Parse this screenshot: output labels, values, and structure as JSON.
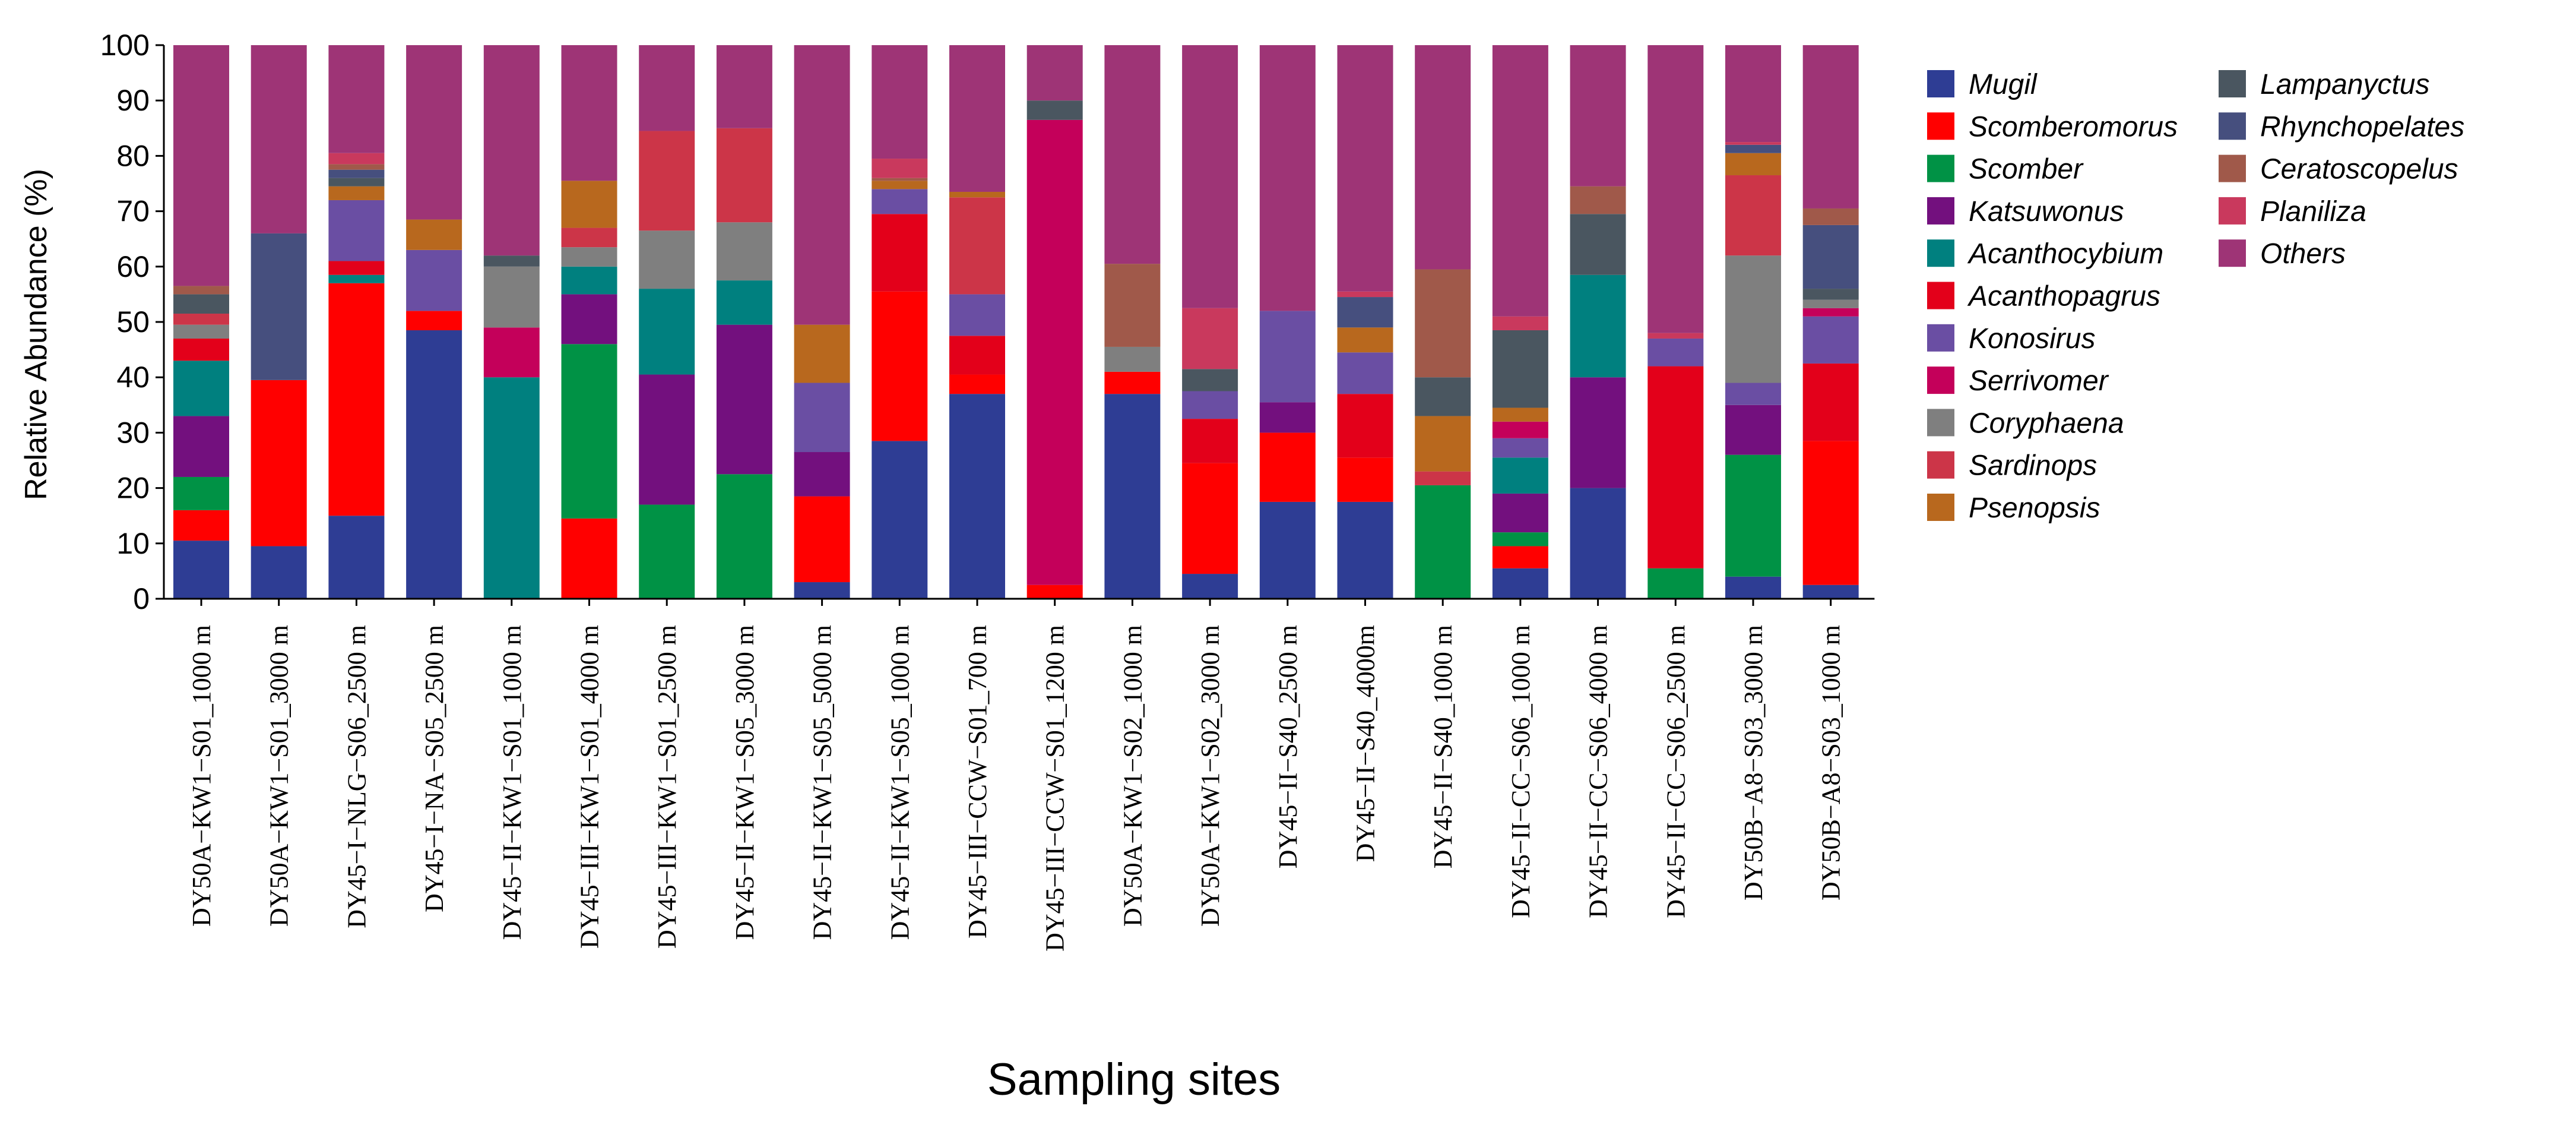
{
  "chart_data": {
    "type": "bar",
    "stacked": true,
    "title": "",
    "xlabel": "Sampling sites",
    "ylabel": "Relative Abundance (%)",
    "ylim": [
      0,
      100
    ],
    "yticks": [
      0,
      10,
      20,
      30,
      40,
      50,
      60,
      70,
      80,
      90,
      100
    ],
    "legend_position": "right",
    "categories": [
      "DY50A−KW1−S01_1000 m",
      "DY50A−KW1−S01_3000 m",
      "DY45−I−NLG−S06_2500 m",
      "DY45−I−NA−S05_2500 m",
      "DY45−II−KW1−S01_1000 m",
      "DY45−III−KW1−S01_4000 m",
      "DY45−III−KW1−S01_2500 m",
      "DY45−II−KW1−S05_3000 m",
      "DY45−II−KW1−S05_5000 m",
      "DY45−II−KW1−S05_1000 m",
      "DY45−III−CCW−S01_700 m",
      "DY45−III−CCW−S01_1200 m",
      "DY50A−KW1−S02_1000 m",
      "DY50A−KW1−S02_3000 m",
      "DY45−II−S40_2500 m",
      "DY45−II−S40_4000m",
      "DY45−II−S40_1000 m",
      "DY45−II−CC−S06_1000 m",
      "DY45−II−CC−S06_4000 m",
      "DY45−II−CC−S06_2500 m",
      "DY50B−A8−S03_3000 m",
      "DY50B−A8−S03_1000 m"
    ],
    "series": [
      {
        "name": "Mugil",
        "color": "#2e3d94",
        "values": [
          10.5,
          9.5,
          15,
          48.5,
          0,
          0,
          0,
          0,
          3,
          28.5,
          37,
          0,
          37,
          4.5,
          17.5,
          17.5,
          0,
          5.5,
          20,
          0,
          4,
          2.5
        ]
      },
      {
        "name": "Scomberomorus",
        "color": "#ff0000",
        "values": [
          5.5,
          30,
          42,
          3.5,
          0,
          14.5,
          0,
          0,
          15.5,
          27,
          3.5,
          2.5,
          4,
          20,
          12.5,
          8,
          0,
          4,
          0,
          0,
          0,
          26
        ]
      },
      {
        "name": "Scomber",
        "color": "#009245",
        "values": [
          6,
          0,
          0,
          0,
          0,
          31.5,
          17,
          22.5,
          0,
          0,
          0,
          0,
          0,
          0,
          0,
          0,
          20.5,
          2.5,
          0,
          5.5,
          22,
          0
        ]
      },
      {
        "name": "Katsuwonus",
        "color": "#73107e",
        "values": [
          11,
          0,
          0,
          0,
          0,
          9,
          23.5,
          27,
          8,
          0,
          0,
          0,
          0,
          0,
          5.5,
          0,
          0,
          7,
          20,
          0,
          9,
          0
        ]
      },
      {
        "name": "Acanthocybium",
        "color": "#00807f",
        "values": [
          10,
          0,
          1.5,
          0,
          40,
          5,
          15.5,
          8,
          0,
          0,
          0,
          0,
          0,
          0,
          0,
          0,
          0,
          6.5,
          18.5,
          0,
          0,
          0
        ]
      },
      {
        "name": "Acanthopagrus",
        "color": "#e3001a",
        "values": [
          4,
          0,
          2.5,
          0,
          0,
          0,
          0,
          0,
          0,
          14,
          7,
          0,
          0,
          8,
          0,
          11.5,
          0,
          0,
          0,
          36.5,
          0,
          14
        ]
      },
      {
        "name": "Konosirus",
        "color": "#6a4ea3",
        "values": [
          0,
          0,
          11,
          11,
          0,
          0,
          0,
          0,
          12.5,
          4.5,
          7.5,
          0,
          0,
          5,
          16.5,
          7.5,
          0,
          3.5,
          0,
          5,
          4,
          8.5
        ]
      },
      {
        "name": "Serrivomer",
        "color": "#c4005a",
        "values": [
          0,
          0,
          0,
          0,
          9,
          0,
          0,
          0,
          0,
          0,
          0,
          84,
          0,
          0,
          0,
          0,
          0,
          3,
          0,
          0,
          0,
          1.5
        ]
      },
      {
        "name": "Coryphaena",
        "color": "#7f7f7f",
        "values": [
          2.5,
          0,
          0,
          0,
          11,
          3.5,
          10.5,
          10.5,
          0,
          0,
          0,
          0,
          4.5,
          0,
          0,
          0,
          0,
          0,
          0,
          0,
          23,
          1.5
        ]
      },
      {
        "name": "Sardinops",
        "color": "#cc3548",
        "values": [
          2,
          0,
          0,
          0,
          0,
          3.5,
          18,
          17,
          0,
          0,
          17.5,
          0,
          0,
          0,
          0,
          0,
          2.5,
          0,
          0,
          0,
          14.5,
          0
        ]
      },
      {
        "name": "Psenopsis",
        "color": "#b8681e",
        "values": [
          0,
          0,
          2.5,
          5.5,
          0,
          8.5,
          0,
          0,
          10.5,
          1.5,
          1,
          0,
          0,
          0,
          0,
          4.5,
          10,
          2.5,
          0,
          0,
          4,
          0
        ]
      },
      {
        "name": "Lampanyctus",
        "color": "#4a5660",
        "values": [
          3.5,
          0,
          1.5,
          0,
          2,
          0,
          0,
          0,
          0,
          0,
          0,
          3.5,
          0,
          4,
          0,
          0,
          7,
          14,
          11,
          0,
          0,
          2
        ]
      },
      {
        "name": "Rhynchopelates",
        "color": "#464f7e",
        "values": [
          0,
          26.5,
          1.5,
          0,
          0,
          0,
          0,
          0,
          0,
          0,
          0,
          0,
          0,
          0,
          0,
          5.5,
          0,
          0,
          0,
          0,
          1.5,
          11.5
        ]
      },
      {
        "name": "Ceratoscopelus",
        "color": "#a0594a",
        "values": [
          1.5,
          0,
          1,
          0,
          0,
          0,
          0,
          0,
          0,
          0.5,
          0,
          0,
          15,
          0,
          0,
          0,
          19.5,
          0,
          5,
          0,
          0,
          3
        ]
      },
      {
        "name": "Planiliza",
        "color": "#c9395d",
        "values": [
          0,
          0,
          2,
          0,
          0,
          0,
          0,
          0,
          0,
          3.5,
          0,
          0,
          0,
          11,
          0,
          1,
          0,
          2.5,
          0,
          1,
          0.5,
          0
        ]
      },
      {
        "name": "Others",
        "color": "#9e3476",
        "values": [
          43.5,
          34,
          19.5,
          31.5,
          38,
          24.5,
          15.5,
          15,
          50.5,
          20.5,
          26.5,
          10,
          39.5,
          47.5,
          48,
          44.5,
          40.5,
          49,
          25.5,
          52,
          17.5,
          29.5
        ]
      }
    ]
  }
}
